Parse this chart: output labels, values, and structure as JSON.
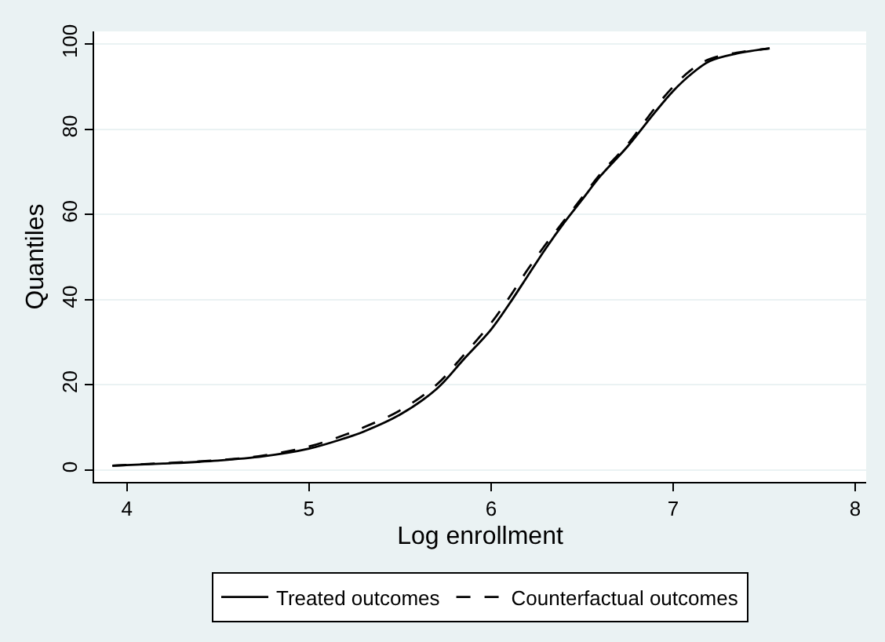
{
  "chart_data": {
    "type": "line",
    "xlabel": "Log enrollment",
    "ylabel": "Quantiles",
    "xlim": [
      3.82,
      8.06
    ],
    "xticks": [
      4,
      5,
      6,
      7,
      8
    ],
    "ylim": [
      -2.8,
      103
    ],
    "yticks": [
      0,
      20,
      40,
      60,
      80,
      100
    ],
    "grid": "y",
    "legend": "bottom",
    "marker": "none",
    "series": [
      {
        "name": "Treated outcomes",
        "color": "#000000",
        "line_style": "solid",
        "x": [
          3.92,
          4.2,
          4.5,
          4.75,
          5.0,
          5.2,
          5.3,
          5.5,
          5.7,
          5.85,
          6.0,
          6.1,
          6.2,
          6.3,
          6.4,
          6.5,
          6.6,
          6.75,
          6.9,
          7.0,
          7.1,
          7.2,
          7.35,
          7.53
        ],
        "values": [
          1,
          1.5,
          2.2,
          3.2,
          5,
          7.5,
          9,
          13,
          19,
          26,
          33,
          39,
          45.5,
          52,
          58,
          63.5,
          69,
          76,
          84,
          89,
          93,
          96,
          97.8,
          99
        ]
      },
      {
        "name": "Counterfactual outcomes",
        "color": "#000000",
        "line_style": "dashed",
        "x": [
          3.92,
          4.2,
          4.5,
          4.75,
          5.0,
          5.2,
          5.3,
          5.5,
          5.7,
          5.85,
          6.0,
          6.1,
          6.2,
          6.3,
          6.4,
          6.5,
          6.6,
          6.75,
          6.9,
          7.0,
          7.1,
          7.2,
          7.35,
          7.53
        ],
        "values": [
          1,
          1.6,
          2.3,
          3.4,
          5.5,
          8.3,
          10,
          14,
          20,
          27,
          34.5,
          40.5,
          47,
          53,
          58.5,
          64,
          69.5,
          76.5,
          85,
          90,
          94,
          96.5,
          98,
          99
        ]
      }
    ]
  }
}
